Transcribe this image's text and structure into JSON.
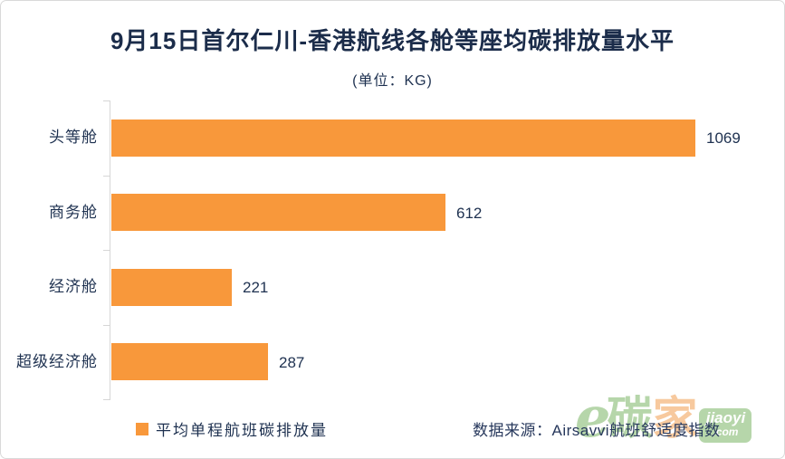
{
  "chart_data": {
    "type": "bar",
    "orientation": "horizontal",
    "title": "9月15日首尔仁川-香港航线各舱等座均碳排放量水平",
    "subtitle": "(单位：KG)",
    "unit": "KG",
    "categories": [
      "头等舱",
      "商务舱",
      "经济舱",
      "超级经济舱"
    ],
    "series": [
      {
        "name": "平均单程航班碳排放量",
        "values": [
          1069,
          612,
          221,
          287
        ]
      }
    ],
    "xlim": [
      0,
      1069
    ],
    "grid": false,
    "legend_position": "bottom",
    "value_labels": true
  },
  "legend": {
    "label": "平均单程航班碳排放量"
  },
  "source": {
    "text": "数据来源：Airsavvi航班舒适度指数"
  },
  "watermark": {
    "brand": "易碳家",
    "stylized_e": "e",
    "char2": "碳",
    "char3": "家",
    "domain_top": "jiaoyi",
    "domain_bottom": ".com"
  },
  "colors": {
    "bar": "#F8983B",
    "title_text": "#1B2C4A",
    "body_text": "#1E3150",
    "axis": "#D6D6D6",
    "card_border": "#D9D9D9",
    "background": "#FFFFFF",
    "watermark_green": "#6FAE58",
    "watermark_orange": "#F0953F"
  }
}
